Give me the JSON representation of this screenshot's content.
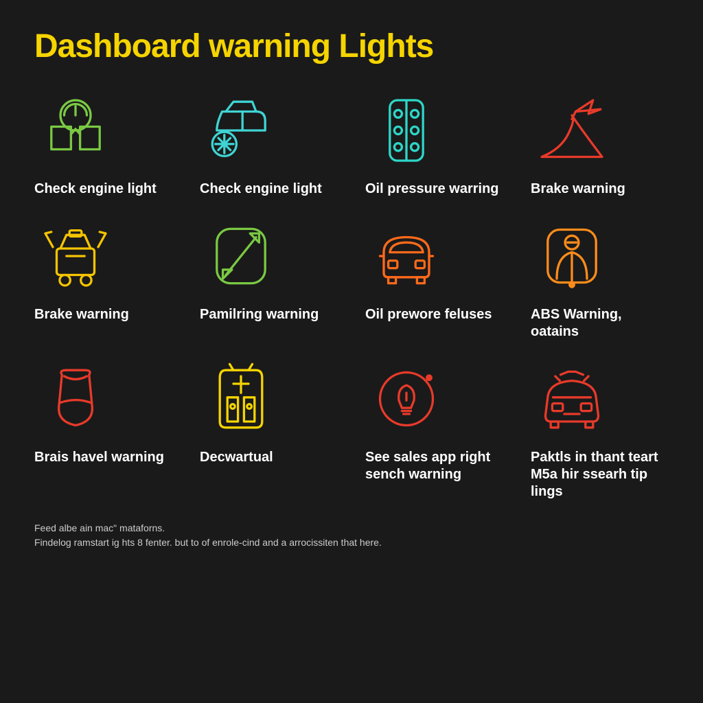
{
  "title": "Dashboard warning Lights",
  "title_color": "#f5d400",
  "background_color": "#1a1a1a",
  "label_color": "#ffffff",
  "label_fontsize": 20,
  "title_fontsize": 48,
  "grid_columns": 4,
  "grid_rows": 3,
  "icon_stroke_width": 3,
  "items": [
    {
      "label": "Check engine light",
      "color": "#7ac943",
      "icon": "engine-gauge"
    },
    {
      "label": "Check engine light",
      "color": "#3fd4d4",
      "icon": "car-tire"
    },
    {
      "label": "Oil pressure warring",
      "color": "#2ed6c8",
      "icon": "panel-dots"
    },
    {
      "label": "Brake warning",
      "color": "#e83a2a",
      "icon": "slope-arrow"
    },
    {
      "label": "Brake warning",
      "color": "#f5c400",
      "icon": "car-doors"
    },
    {
      "label": "Pamilring warning",
      "color": "#7ac943",
      "icon": "seatbelt"
    },
    {
      "label": "Oil prewore feluses",
      "color": "#ff6a1a",
      "icon": "car-rear"
    },
    {
      "label": "ABS Warning, oatains",
      "color": "#ff8c1a",
      "icon": "airbag"
    },
    {
      "label": "Brais havel warning",
      "color": "#e83a2a",
      "icon": "seat"
    },
    {
      "label": "Decwartual",
      "color": "#f5d400",
      "icon": "car-panel"
    },
    {
      "label": "See sales app right sench warning",
      "color": "#e83a2a",
      "icon": "bulb-circle"
    },
    {
      "label": "Paktls in thant teart M5a hir ssearh tip lings",
      "color": "#e83a2a",
      "icon": "car-front"
    }
  ],
  "footer_line1": "Feed albe ain mac\" mataforns.",
  "footer_line2": "Findelog ramstart ig hts 8 fenter. but to of enrole-cind and a arrocissiten that here.",
  "footer_color": "#cccccc"
}
